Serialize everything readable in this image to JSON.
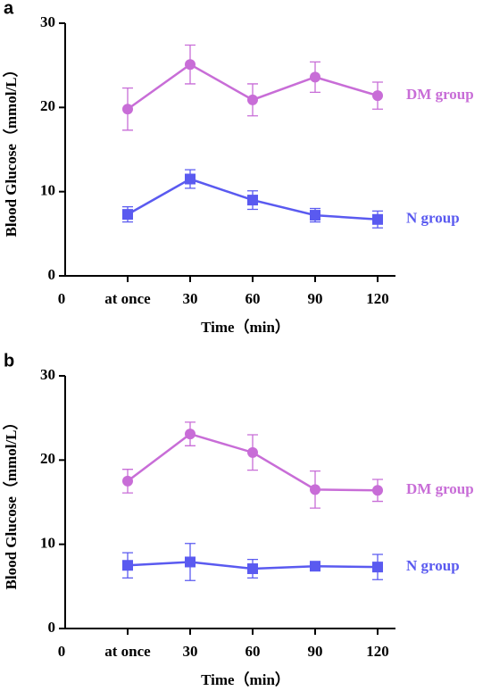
{
  "charts": [
    {
      "chart_data": {
        "type": "line",
        "panel": "a",
        "x_label": "Time（min）",
        "y_label": "Blood Glucose（mmol/L）",
        "categories": [
          "0",
          "at once",
          "30",
          "60",
          "90",
          "120"
        ],
        "ylim": [
          0,
          30
        ],
        "yticks": [
          0,
          10,
          20,
          30
        ],
        "series": [
          {
            "name": "DM group",
            "color": "#c86dd7",
            "marker": "circle",
            "values": [
              null,
              19.8,
              25.1,
              20.9,
              23.6,
              21.4
            ],
            "errors": [
              null,
              2.5,
              2.3,
              1.9,
              1.8,
              1.6
            ]
          },
          {
            "name": "N group",
            "color": "#5a5af0",
            "marker": "square",
            "values": [
              null,
              7.3,
              11.5,
              9.0,
              7.2,
              6.7
            ],
            "errors": [
              null,
              0.9,
              1.1,
              1.1,
              0.8,
              1.0
            ]
          }
        ]
      }
    },
    {
      "chart_data": {
        "type": "line",
        "panel": "b",
        "x_label": "Time（min）",
        "y_label": "Blood Glucose（mmol/L）",
        "categories": [
          "0",
          "at once",
          "30",
          "60",
          "90",
          "120"
        ],
        "ylim": [
          0,
          30
        ],
        "yticks": [
          0,
          10,
          20,
          30
        ],
        "series": [
          {
            "name": "DM group",
            "color": "#c86dd7",
            "marker": "circle",
            "values": [
              null,
              17.5,
              23.1,
              20.9,
              16.5,
              16.4
            ],
            "errors": [
              null,
              1.4,
              1.4,
              2.1,
              2.2,
              1.3
            ]
          },
          {
            "name": "N group",
            "color": "#5a5af0",
            "marker": "square",
            "values": [
              null,
              7.5,
              7.9,
              7.1,
              7.4,
              7.3
            ],
            "errors": [
              null,
              1.5,
              2.2,
              1.1,
              0.4,
              1.5
            ]
          }
        ]
      }
    }
  ]
}
